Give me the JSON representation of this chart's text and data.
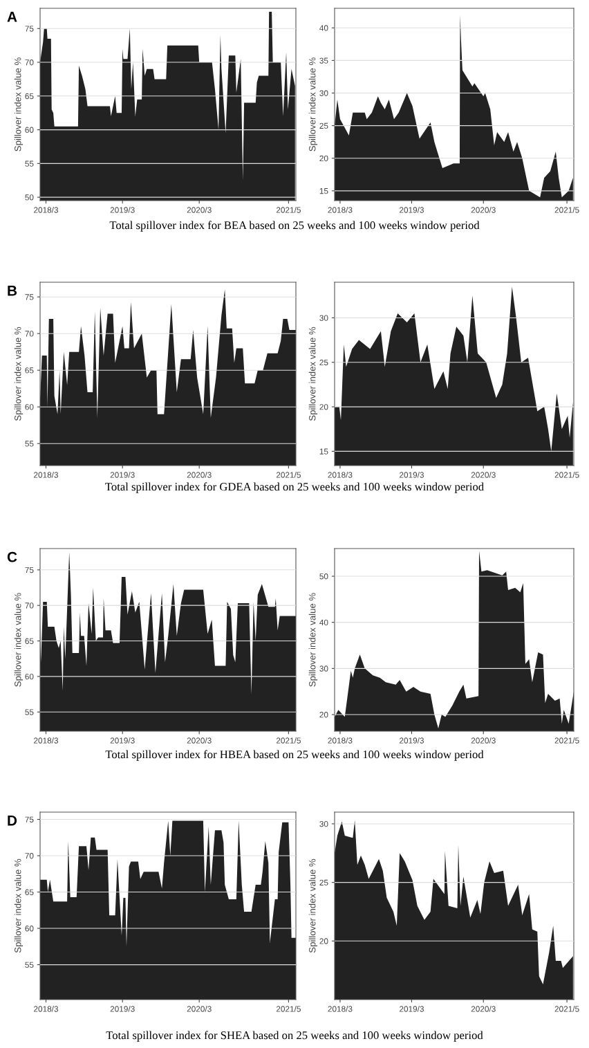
{
  "chart_data": [
    {
      "type": "area",
      "title": "A",
      "ylabel": "Spillover index value %",
      "color": "#222222",
      "grid": "y",
      "annotations": [
        "Total spillover index for BEA based on 25 weeks and 100 weeks window period"
      ],
      "xlim": [
        "2018-02-01",
        "2021-06-05"
      ],
      "xticks": [
        {
          "value": "2018-03",
          "label": "2018/3"
        },
        {
          "value": "2019-03",
          "label": "2019/3"
        },
        {
          "value": "2020-03",
          "label": "2020/3"
        },
        {
          "value": "2021-05",
          "label": "2021/5"
        }
      ],
      "ylim": [
        49.5,
        78
      ],
      "yticks": [
        50,
        55,
        60,
        65,
        70,
        75
      ],
      "x": [
        "2018-02-01",
        "2018-02-15",
        "2018-02-20",
        "2018-03-05",
        "2018-03-08",
        "2018-03-25",
        "2018-03-28",
        "2018-04-05",
        "2018-04-10",
        "2018-08-01",
        "2018-08-05",
        "2018-08-20",
        "2018-09-05",
        "2018-09-15",
        "2018-12-31",
        "2019-01-05",
        "2019-01-25",
        "2019-02-01",
        "2019-02-25",
        "2019-03-01",
        "2019-03-05",
        "2019-03-25",
        "2019-04-05",
        "2019-04-12",
        "2019-04-20",
        "2019-05-01",
        "2019-05-10",
        "2019-06-01",
        "2019-06-05",
        "2019-06-15",
        "2019-06-25",
        "2019-07-25",
        "2019-08-01",
        "2019-09-25",
        "2019-10-01",
        "2020-02-25",
        "2020-03-01",
        "2020-05-01",
        "2020-05-15",
        "2020-06-01",
        "2020-06-10",
        "2020-06-15",
        "2020-07-05",
        "2020-07-20",
        "2020-08-20",
        "2020-08-25",
        "2020-09-15",
        "2020-09-25",
        "2020-10-01",
        "2020-11-25",
        "2020-12-01",
        "2020-12-10",
        "2021-01-25",
        "2021-01-28",
        "2021-02-10",
        "2021-02-15",
        "2021-03-25",
        "2021-04-05",
        "2021-04-20",
        "2021-04-28",
        "2021-05-15",
        "2021-06-01"
      ],
      "values": [
        70,
        73,
        75,
        75,
        73.5,
        73.5,
        63,
        62.5,
        60.5,
        60.5,
        69.5,
        68,
        66,
        63.5,
        63.5,
        62,
        65,
        62.5,
        62.5,
        72,
        70.5,
        70.5,
        75,
        66,
        70,
        62,
        64.5,
        64.5,
        72,
        68,
        69,
        69,
        67.5,
        67.5,
        72.5,
        72.5,
        70,
        70,
        66,
        60,
        74,
        69,
        59.5,
        71,
        71,
        65.5,
        70.5,
        52.5,
        64,
        64,
        67,
        68,
        68,
        77.5,
        77.5,
        70,
        70,
        62,
        71.5,
        63,
        69,
        66.5
      ]
    },
    {
      "type": "area",
      "ylabel": "Spillover index value %",
      "color": "#222222",
      "grid": "y",
      "xlim": [
        "2018-02-01",
        "2021-06-05"
      ],
      "xticks": [
        {
          "value": "2018-03",
          "label": "2018/3"
        },
        {
          "value": "2019-03",
          "label": "2019/3"
        },
        {
          "value": "2020-03",
          "label": "2020/3"
        },
        {
          "value": "2021-05",
          "label": "2021/5"
        }
      ],
      "ylim": [
        13.5,
        43
      ],
      "yticks": [
        15,
        20,
        25,
        30,
        35,
        40
      ],
      "x": [
        "2018-02-01",
        "2018-02-15",
        "2018-03-01",
        "2018-04-15",
        "2018-05-05",
        "2018-07-05",
        "2018-07-15",
        "2018-08-10",
        "2018-09-10",
        "2018-09-25",
        "2018-10-15",
        "2018-11-05",
        "2018-12-01",
        "2018-12-25",
        "2019-02-05",
        "2019-03-05",
        "2019-04-10",
        "2019-06-05",
        "2019-06-25",
        "2019-07-10",
        "2019-08-05",
        "2019-10-01",
        "2019-11-01",
        "2019-11-03",
        "2019-11-08",
        "2019-11-15",
        "2020-01-05",
        "2020-01-15",
        "2020-03-01",
        "2020-03-10",
        "2020-04-05",
        "2020-04-25",
        "2020-05-10",
        "2020-06-15",
        "2020-07-05",
        "2020-08-01",
        "2020-08-20",
        "2020-09-15",
        "2020-10-20",
        "2020-12-15",
        "2021-01-05",
        "2021-02-05",
        "2021-03-05",
        "2021-03-20",
        "2021-04-05",
        "2021-05-10",
        "2021-06-01"
      ],
      "values": [
        25,
        29,
        26,
        23.5,
        27,
        27,
        26,
        27,
        29.5,
        28.5,
        27.5,
        29,
        26,
        27,
        30,
        28,
        23,
        25.5,
        22.5,
        21,
        18.5,
        19.2,
        19.2,
        42,
        38,
        33.5,
        31,
        31.5,
        29.5,
        30,
        27.5,
        22,
        24,
        22.5,
        24,
        21,
        22.5,
        20,
        15,
        14,
        17,
        18,
        21,
        17,
        14,
        15,
        17
      ]
    },
    {
      "type": "area",
      "title": "B",
      "ylabel": "Spillover index value %",
      "color": "#222222",
      "grid": "y",
      "annotations": [
        "Total spillover index for GDEA based on 25 weeks and 100 weeks window period"
      ],
      "xlim": [
        "2018-02-01",
        "2021-06-05"
      ],
      "xticks": [
        {
          "value": "2018-03",
          "label": "2018/3"
        },
        {
          "value": "2019-03",
          "label": "2019/3"
        },
        {
          "value": "2020-03",
          "label": "2020/3"
        },
        {
          "value": "2021-05",
          "label": "2021/5"
        }
      ],
      "ylim": [
        52,
        77
      ],
      "yticks": [
        55,
        60,
        65,
        70,
        75
      ],
      "x": [
        "2018-02-01",
        "2018-02-10",
        "2018-03-05",
        "2018-03-08",
        "2018-03-15",
        "2018-04-05",
        "2018-04-10",
        "2018-04-25",
        "2018-05-05",
        "2018-05-10",
        "2018-05-25",
        "2018-06-10",
        "2018-06-20",
        "2018-08-05",
        "2018-08-15",
        "2018-09-01",
        "2018-09-15",
        "2018-10-10",
        "2018-10-20",
        "2018-11-01",
        "2018-11-15",
        "2018-12-01",
        "2018-12-20",
        "2019-01-15",
        "2019-01-25",
        "2019-03-01",
        "2019-03-10",
        "2019-04-01",
        "2019-04-10",
        "2019-04-25",
        "2019-06-01",
        "2019-06-25",
        "2019-07-15",
        "2019-08-10",
        "2019-08-15",
        "2019-09-15",
        "2019-10-20",
        "2019-11-15",
        "2019-12-05",
        "2020-01-20",
        "2020-02-01",
        "2020-02-20",
        "2020-03-20",
        "2020-04-10",
        "2020-04-25",
        "2020-05-20",
        "2020-06-15",
        "2020-07-01",
        "2020-07-10",
        "2020-08-05",
        "2020-08-15",
        "2020-08-25",
        "2020-09-25",
        "2020-10-05",
        "2020-11-20",
        "2020-12-05",
        "2020-12-30",
        "2021-01-20",
        "2021-03-10",
        "2021-03-25",
        "2021-04-05",
        "2021-04-25",
        "2021-05-05",
        "2021-06-05"
      ],
      "values": [
        61,
        67,
        67,
        60,
        72,
        72,
        61.5,
        59,
        65,
        59,
        67.5,
        63,
        67.5,
        67.5,
        71,
        67,
        62,
        62,
        73,
        58.5,
        73.5,
        67,
        72.7,
        72.7,
        66,
        71,
        68,
        68,
        74.3,
        68,
        70,
        64,
        65,
        65,
        59,
        59,
        74,
        62,
        66.5,
        66.5,
        70.5,
        64,
        59,
        71,
        58.5,
        64,
        72.5,
        76,
        70.7,
        70.7,
        66,
        68,
        68,
        63.2,
        63.2,
        65,
        65,
        67.3,
        67.3,
        69,
        72,
        72,
        70.5,
        70.5
      ]
    },
    {
      "type": "area",
      "ylabel": "Spillover index value %",
      "color": "#222222",
      "grid": "y",
      "xlim": [
        "2018-02-01",
        "2021-06-05"
      ],
      "xticks": [
        {
          "value": "2018-03",
          "label": "2018/3"
        },
        {
          "value": "2019-03",
          "label": "2019/3"
        },
        {
          "value": "2020-03",
          "label": "2020/3"
        },
        {
          "value": "2021-05",
          "label": "2021/5"
        }
      ],
      "ylim": [
        13.4,
        34
      ],
      "yticks": [
        15,
        20,
        25,
        30
      ],
      "x": [
        "2018-02-01",
        "2018-02-25",
        "2018-03-05",
        "2018-03-20",
        "2018-04-01",
        "2018-05-01",
        "2018-06-05",
        "2018-08-01",
        "2018-09-25",
        "2018-10-15",
        "2018-11-15",
        "2018-12-20",
        "2019-02-05",
        "2019-03-15",
        "2019-04-15",
        "2019-05-20",
        "2019-06-25",
        "2019-08-10",
        "2019-09-01",
        "2019-09-15",
        "2019-10-15",
        "2019-11-20",
        "2019-12-10",
        "2020-01-05",
        "2020-02-01",
        "2020-03-15",
        "2020-05-05",
        "2020-06-05",
        "2020-06-30",
        "2020-07-25",
        "2020-08-15",
        "2020-09-10",
        "2020-10-15",
        "2020-12-01",
        "2021-01-05",
        "2021-01-25",
        "2021-02-10",
        "2021-03-10",
        "2021-04-05",
        "2021-05-05",
        "2021-05-15",
        "2021-06-01"
      ],
      "values": [
        20,
        20,
        18.5,
        27,
        24.5,
        26.5,
        27.5,
        26.5,
        28.5,
        24.5,
        28.5,
        30.5,
        29.5,
        30.5,
        25,
        27,
        22,
        24,
        22,
        26,
        29,
        28,
        25,
        32.5,
        26,
        25,
        21,
        22.5,
        26,
        33.5,
        30,
        25,
        25.5,
        19.5,
        20,
        17.5,
        15,
        21.5,
        17.5,
        19,
        16.5,
        20.5
      ]
    },
    {
      "type": "area",
      "title": "C",
      "ylabel": "Spillover index value %",
      "color": "#222222",
      "grid": "y",
      "annotations": [
        "Total spillover index for HBEA based on 25 weeks and 100 weeks window period"
      ],
      "xlim": [
        "2018-02-01",
        "2021-06-05"
      ],
      "xticks": [
        {
          "value": "2018-03",
          "label": "2018/3"
        },
        {
          "value": "2019-03",
          "label": "2019/3"
        },
        {
          "value": "2020-03",
          "label": "2020/3"
        },
        {
          "value": "2021-05",
          "label": "2021/5"
        }
      ],
      "ylim": [
        52.3,
        78
      ],
      "yticks": [
        55,
        60,
        65,
        70,
        75
      ],
      "x": [
        "2018-02-01",
        "2018-02-05",
        "2018-02-15",
        "2018-03-05",
        "2018-03-10",
        "2018-04-10",
        "2018-04-20",
        "2018-05-01",
        "2018-05-10",
        "2018-05-20",
        "2018-05-25",
        "2018-06-01",
        "2018-06-10",
        "2018-06-20",
        "2018-06-28",
        "2018-07-05",
        "2018-08-05",
        "2018-08-10",
        "2018-08-15",
        "2018-08-30",
        "2018-09-10",
        "2018-09-20",
        "2018-10-05",
        "2018-10-12",
        "2018-10-25",
        "2018-11-05",
        "2018-11-28",
        "2018-12-01",
        "2018-12-10",
        "2019-01-05",
        "2019-01-15",
        "2019-02-15",
        "2019-02-25",
        "2019-03-15",
        "2019-03-25",
        "2019-04-15",
        "2019-05-01",
        "2019-05-20",
        "2019-06-15",
        "2019-07-15",
        "2019-08-05",
        "2019-09-05",
        "2019-09-20",
        "2019-10-05",
        "2019-10-30",
        "2019-11-15",
        "2019-12-05",
        "2019-12-20",
        "2020-03-20",
        "2020-04-10",
        "2020-04-30",
        "2020-05-15",
        "2020-07-05",
        "2020-07-12",
        "2020-07-30",
        "2020-08-10",
        "2020-08-20",
        "2020-09-01",
        "2020-10-25",
        "2020-11-05",
        "2020-11-15",
        "2020-11-25",
        "2020-12-05",
        "2020-12-25",
        "2021-01-25",
        "2021-02-25",
        "2021-03-01",
        "2021-03-10",
        "2021-03-20",
        "2021-06-05"
      ],
      "values": [
        68,
        62,
        70.5,
        70.5,
        67,
        67,
        65,
        64,
        65,
        58,
        67,
        62.5,
        69.5,
        77.5,
        71.5,
        63.3,
        63.3,
        69,
        65.7,
        65.7,
        61.5,
        70.3,
        66,
        72.5,
        65,
        65.5,
        65.5,
        71,
        66.5,
        66.5,
        64.7,
        64.7,
        74,
        74,
        68.7,
        72,
        69,
        70.5,
        61,
        71.7,
        60.5,
        71.7,
        62,
        65.7,
        73,
        65.7,
        70.3,
        72.2,
        72.2,
        66,
        68,
        61.5,
        61.5,
        70.5,
        69.5,
        63,
        62,
        70.3,
        70.3,
        57.5,
        70.5,
        65,
        71.5,
        73,
        69.8,
        69.8,
        71,
        66.5,
        68.5,
        68.5
      ]
    },
    {
      "type": "area",
      "ylabel": "Spillover index value %",
      "color": "#222222",
      "grid": "y",
      "xlim": [
        "2018-02-01",
        "2021-06-05"
      ],
      "xticks": [
        {
          "value": "2018-03",
          "label": "2018/3"
        },
        {
          "value": "2019-03",
          "label": "2019/3"
        },
        {
          "value": "2020-03",
          "label": "2020/3"
        },
        {
          "value": "2021-05",
          "label": "2021/5"
        }
      ],
      "ylim": [
        16.4,
        56
      ],
      "yticks": [
        20,
        30,
        40,
        50
      ],
      "x": [
        "2018-02-01",
        "2018-02-20",
        "2018-03-25",
        "2018-04-25",
        "2018-05-05",
        "2018-05-15",
        "2018-06-10",
        "2018-07-05",
        "2018-08-15",
        "2018-09-20",
        "2018-10-20",
        "2018-12-10",
        "2018-12-30",
        "2019-02-01",
        "2019-03-10",
        "2019-04-15",
        "2019-06-05",
        "2019-06-25",
        "2019-07-15",
        "2019-08-01",
        "2019-08-20",
        "2019-09-25",
        "2019-10-30",
        "2019-11-20",
        "2019-12-05",
        "2020-02-05",
        "2020-02-08",
        "2020-02-20",
        "2020-03-20",
        "2020-06-05",
        "2020-06-25",
        "2020-07-05",
        "2020-08-10",
        "2020-09-05",
        "2020-09-20",
        "2020-10-01",
        "2020-10-20",
        "2020-11-05",
        "2020-12-05",
        "2020-12-30",
        "2021-01-10",
        "2021-01-25",
        "2021-03-01",
        "2021-03-25",
        "2021-04-05",
        "2021-04-15",
        "2021-05-10",
        "2021-06-05"
      ],
      "values": [
        19.5,
        21,
        19.5,
        29.5,
        28,
        30,
        33,
        30,
        28.5,
        28,
        27,
        26.5,
        27.5,
        25,
        26,
        25,
        24.5,
        20,
        17,
        20,
        19.5,
        22,
        25,
        26.5,
        23.5,
        24,
        55.5,
        51,
        51.3,
        50.2,
        51,
        47,
        47.5,
        46.5,
        48.5,
        31,
        32,
        27,
        33.5,
        33,
        22.5,
        24.5,
        23,
        23.5,
        18,
        21,
        18,
        25
      ]
    },
    {
      "type": "area",
      "title": "D",
      "ylabel": "Spillover index value %",
      "color": "#222222",
      "grid": "y",
      "annotations": [
        "Total spillover index for SHEA based on 25 weeks and 100 weeks window period"
      ],
      "xlim": [
        "2018-02-01",
        "2021-06-05"
      ],
      "xticks": [
        {
          "value": "2018-03",
          "label": "2018/3"
        },
        {
          "value": "2019-03",
          "label": "2019/3"
        },
        {
          "value": "2020-03",
          "label": "2020/3"
        },
        {
          "value": "2021-05",
          "label": "2021/5"
        }
      ],
      "ylim": [
        50.2,
        76
      ],
      "yticks": [
        55,
        60,
        65,
        70,
        75
      ],
      "x": [
        "2018-02-01",
        "2018-03-05",
        "2018-03-10",
        "2018-03-20",
        "2018-04-05",
        "2018-06-10",
        "2018-06-15",
        "2018-06-25",
        "2018-07-25",
        "2018-08-05",
        "2018-09-10",
        "2018-09-20",
        "2018-10-01",
        "2018-10-20",
        "2018-10-28",
        "2018-12-20",
        "2018-12-28",
        "2019-01-25",
        "2019-02-05",
        "2019-02-25",
        "2019-03-05",
        "2019-03-15",
        "2019-03-20",
        "2019-04-01",
        "2019-04-10",
        "2019-05-15",
        "2019-05-25",
        "2019-06-10",
        "2019-08-20",
        "2019-09-05",
        "2019-09-15",
        "2019-10-05",
        "2019-10-15",
        "2019-10-25",
        "2020-03-20",
        "2020-03-28",
        "2020-04-15",
        "2020-04-25",
        "2020-05-15",
        "2020-06-15",
        "2020-06-25",
        "2020-07-01",
        "2020-07-20",
        "2020-08-25",
        "2020-09-05",
        "2020-09-20",
        "2020-10-01",
        "2020-11-05",
        "2020-11-25",
        "2020-12-20",
        "2020-12-28",
        "2021-01-10",
        "2021-01-25",
        "2021-02-01",
        "2021-02-25",
        "2021-03-10",
        "2021-03-15",
        "2021-04-01",
        "2021-05-01",
        "2021-05-10",
        "2021-05-15",
        "2021-06-05"
      ],
      "values": [
        66.7,
        66.7,
        65,
        66.7,
        63.7,
        63.7,
        72,
        64.3,
        64.3,
        71.3,
        71.3,
        68,
        72.5,
        72.5,
        70.8,
        70.8,
        61.8,
        61.8,
        69.5,
        59,
        64.2,
        64.2,
        57.5,
        68.5,
        69.2,
        69.2,
        66.8,
        67.8,
        67.8,
        65.5,
        69,
        74.8,
        70,
        74.8,
        74.8,
        65,
        74,
        66,
        73.5,
        73.5,
        71.8,
        66,
        64,
        64,
        74.8,
        66,
        62.3,
        62.3,
        66,
        66,
        67.8,
        72,
        69,
        58,
        64,
        64,
        70.5,
        74.6,
        74.6,
        66,
        58.7,
        58.7
      ]
    },
    {
      "type": "area",
      "ylabel": "Spillover index value %",
      "color": "#222222",
      "grid": "y",
      "xlim": [
        "2018-02-01",
        "2021-06-05"
      ],
      "xticks": [
        {
          "value": "2018-03",
          "label": "2018/3"
        },
        {
          "value": "2019-03",
          "label": "2019/3"
        },
        {
          "value": "2020-03",
          "label": "2020/3"
        },
        {
          "value": "2021-05",
          "label": "2021/5"
        }
      ],
      "ylim": [
        15,
        31
      ],
      "yticks": [
        20,
        25,
        30
      ],
      "x": [
        "2018-02-01",
        "2018-02-15",
        "2018-03-10",
        "2018-03-25",
        "2018-05-05",
        "2018-05-15",
        "2018-05-28",
        "2018-06-15",
        "2018-07-05",
        "2018-07-25",
        "2018-09-15",
        "2018-10-05",
        "2018-10-25",
        "2018-11-28",
        "2018-12-15",
        "2018-12-30",
        "2019-01-25",
        "2019-03-05",
        "2019-03-30",
        "2019-05-05",
        "2019-06-05",
        "2019-06-20",
        "2019-08-15",
        "2019-08-18",
        "2019-09-05",
        "2019-10-20",
        "2019-10-25",
        "2019-11-05",
        "2019-11-20",
        "2019-12-25",
        "2020-01-30",
        "2020-02-15",
        "2020-03-05",
        "2020-04-01",
        "2020-04-25",
        "2020-06-10",
        "2020-07-05",
        "2020-08-25",
        "2020-09-15",
        "2020-10-20",
        "2020-11-05",
        "2020-12-01",
        "2020-12-10",
        "2020-12-30",
        "2021-01-30",
        "2021-02-20",
        "2021-03-05",
        "2021-04-01",
        "2021-04-10",
        "2021-06-01"
      ],
      "values": [
        27.5,
        29,
        30.2,
        29,
        28.8,
        30.3,
        26.5,
        27.3,
        26.5,
        25.3,
        27,
        26,
        23.7,
        22.5,
        21.3,
        27.5,
        26.8,
        25.2,
        23,
        21.8,
        22.5,
        25.3,
        24,
        27.7,
        23,
        22.8,
        28.2,
        23,
        25.5,
        22,
        23.5,
        22.3,
        25,
        26.8,
        25.8,
        26,
        23,
        24.8,
        22.2,
        24,
        21,
        20.8,
        17,
        16.3,
        19,
        21.3,
        18.3,
        18.3,
        17.7,
        18.7
      ]
    }
  ]
}
